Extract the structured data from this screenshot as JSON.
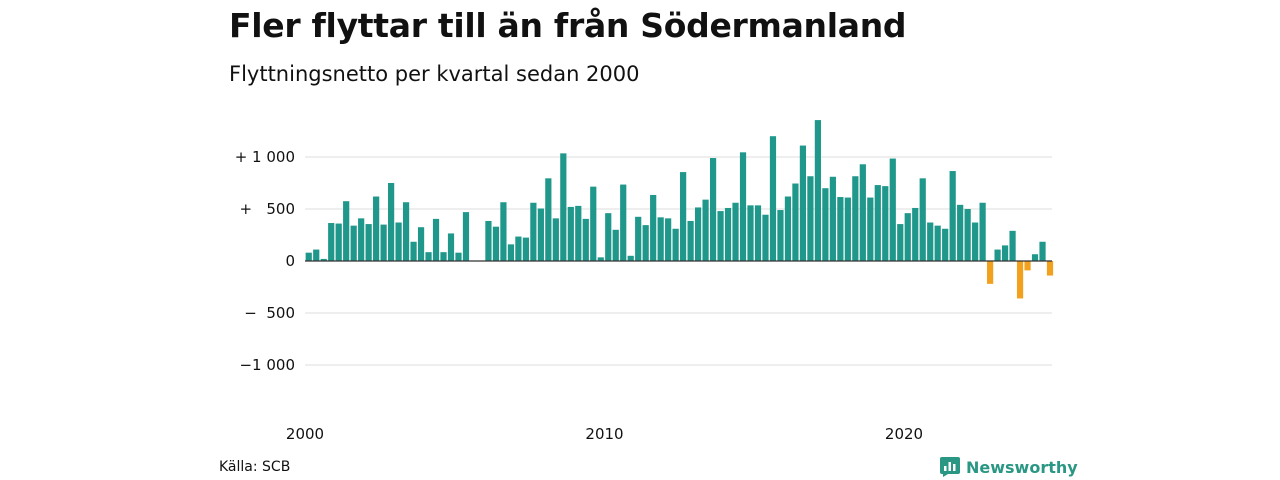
{
  "header": {
    "title": "Fler flyttar till än från Södermanland",
    "subtitle": "Flyttningsnetto per kvartal sedan 2000"
  },
  "footer": {
    "source": "Källa: SCB",
    "brand": "Newsworthy"
  },
  "colors": {
    "positive": "#1f978a",
    "negative": "#f2a11f",
    "brand": "#2a9784",
    "grid": "#dddddd",
    "zero_line": "#333333"
  },
  "chart_data": {
    "type": "bar",
    "ylim": [
      -1000,
      1400
    ],
    "y_ticks": [
      {
        "value": 1000,
        "label": "+ 1 000"
      },
      {
        "value": 500,
        "label": "+   500"
      },
      {
        "value": 0,
        "label": "0"
      },
      {
        "value": -500,
        "label": "−  500"
      },
      {
        "value": -1000,
        "label": "−1 000"
      }
    ],
    "x_ticks": [
      {
        "value": 2000,
        "label": "2000"
      },
      {
        "value": 2010,
        "label": "2010"
      },
      {
        "value": 2020,
        "label": "2020"
      }
    ],
    "grid": true,
    "legend": "none",
    "x_start": 2000,
    "quarters_per_year": 4,
    "values": [
      80,
      110,
      20,
      365,
      360,
      575,
      340,
      410,
      355,
      620,
      350,
      750,
      370,
      565,
      185,
      325,
      85,
      405,
      85,
      265,
      80,
      470,
      0,
      0,
      385,
      330,
      565,
      160,
      235,
      225,
      560,
      505,
      795,
      410,
      1035,
      520,
      530,
      405,
      715,
      35,
      460,
      300,
      735,
      50,
      425,
      345,
      635,
      420,
      410,
      310,
      855,
      385,
      515,
      590,
      990,
      480,
      510,
      560,
      1045,
      535,
      535,
      445,
      1200,
      490,
      620,
      745,
      1110,
      815,
      1355,
      700,
      810,
      615,
      610,
      815,
      930,
      610,
      730,
      720,
      985,
      355,
      460,
      510,
      795,
      370,
      340,
      310,
      865,
      540,
      500,
      370,
      560,
      -220,
      110,
      150,
      290,
      -360,
      -90,
      65,
      185,
      -140
    ]
  }
}
